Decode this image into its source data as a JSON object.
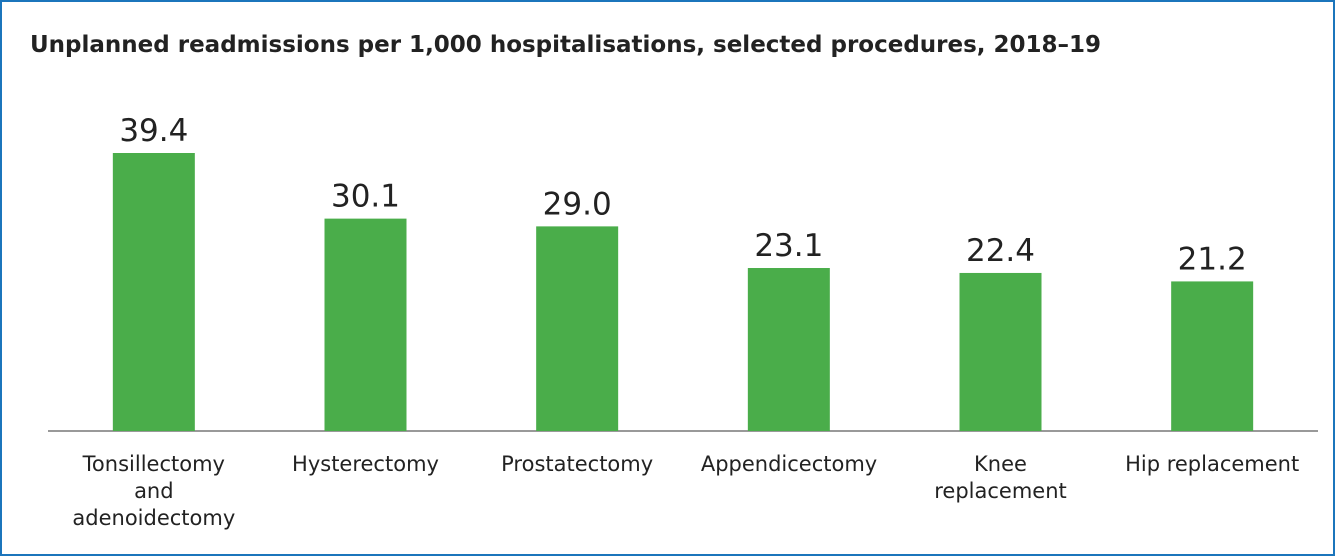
{
  "chart_data": {
    "type": "bar",
    "title": "Unplanned readmissions per 1,000 hospitalisations, selected procedures, 2018–19",
    "categories": [
      "Tonsillectomy and adenoidectomy",
      "Hysterectomy",
      "Prostatectomy",
      "Appendicectomy",
      "Knee replacement",
      "Hip replacement"
    ],
    "values": [
      39.4,
      30.1,
      29.0,
      23.1,
      22.4,
      21.2
    ],
    "value_labels": [
      "39.4",
      "30.1",
      "29.0",
      "23.1",
      "22.4",
      "21.2"
    ],
    "color": "#4aad4a"
  }
}
